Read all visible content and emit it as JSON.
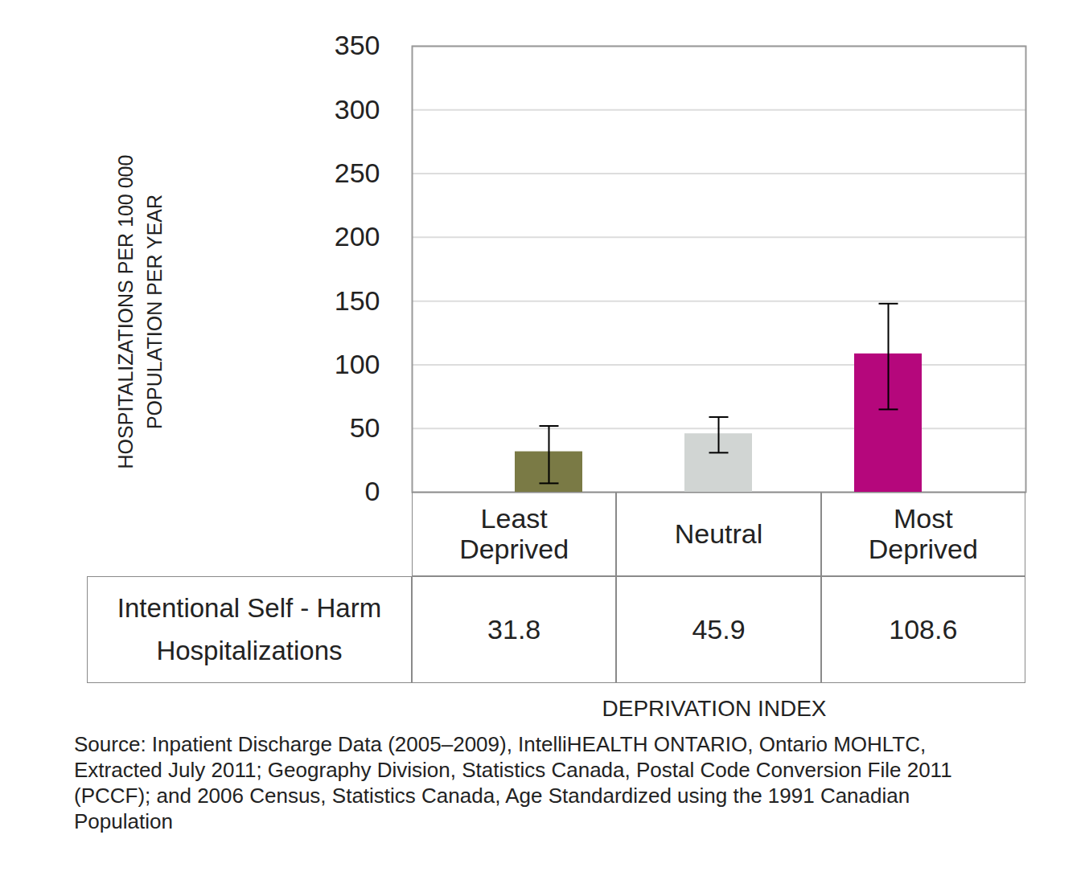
{
  "chart_data": {
    "type": "bar",
    "categories": [
      "Least Deprived",
      "Neutral",
      "Most Deprived"
    ],
    "series": [
      {
        "name": "Intentional Self - Harm Hospitalizations",
        "values": [
          31.8,
          45.9,
          108.6
        ],
        "error_low": [
          7,
          31,
          65
        ],
        "error_high": [
          52,
          59,
          148
        ]
      }
    ],
    "colors": [
      "#7a7a45",
      "#d1d5d3",
      "#b5077c"
    ],
    "ylim": [
      0,
      350
    ],
    "yticks": [
      0,
      50,
      100,
      150,
      200,
      250,
      300,
      350
    ],
    "grid": true,
    "data_labels": true,
    "y_label": "HOSPITALIZATIONS PER 100 000 POPULATION PER YEAR",
    "x_label": "DEPRIVATION INDEX",
    "caption": "Source: Inpatient Discharge Data (2005–2009), IntelliHEALTH ONTARIO, Ontario MOHLTC, Extracted July 2011; Geography Division, Statistics Canada, Postal Code Conversion File 2011 (PCCF); and 2006 Census, Statistics Canada, Age Standardized using the 1991 Canadian Population"
  }
}
